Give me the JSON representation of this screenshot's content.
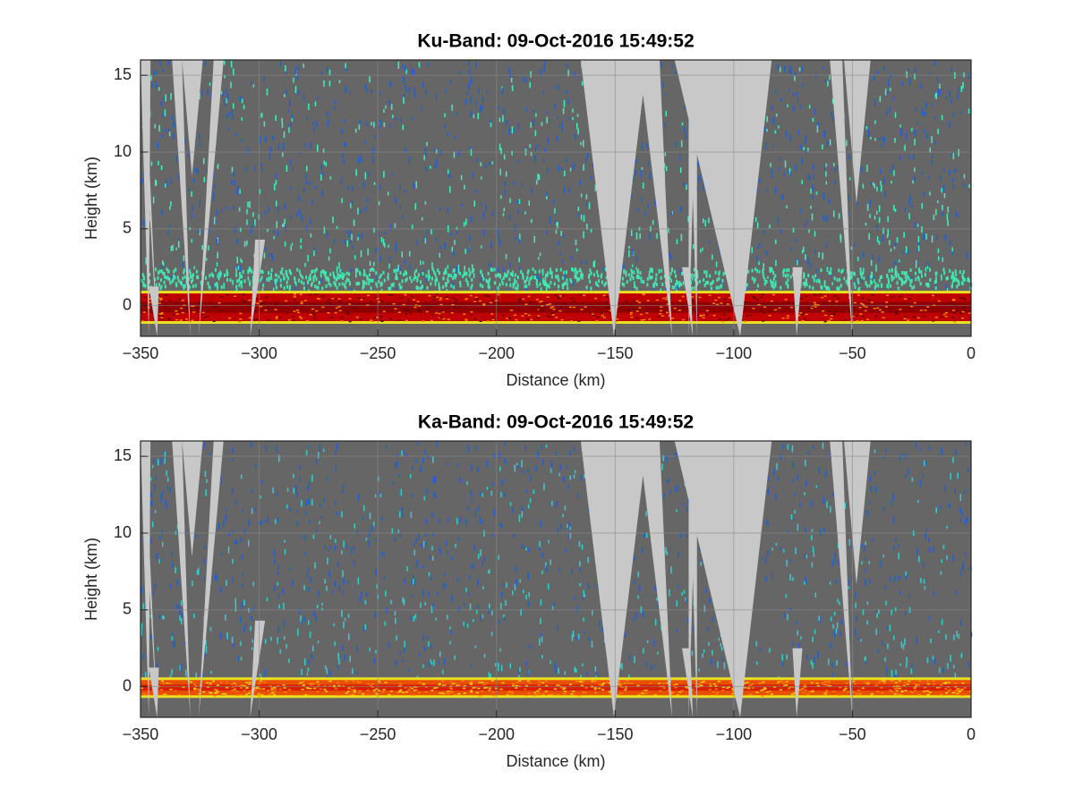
{
  "chart_data": [
    {
      "type": "heatmap",
      "title": "Ku-Band: 09-Oct-2016 15:49:52",
      "xlabel": "Distance (km)",
      "ylabel": "Height (km)",
      "xlim": [
        -350,
        0
      ],
      "ylim": [
        -2,
        16
      ],
      "xticks": [
        {
          "value": -350,
          "label": "−350"
        },
        {
          "value": -300,
          "label": "−300"
        },
        {
          "value": -250,
          "label": "−250"
        },
        {
          "value": -200,
          "label": "−200"
        },
        {
          "value": -150,
          "label": "−150"
        },
        {
          "value": -100,
          "label": "−100"
        },
        {
          "value": -50,
          "label": "−50"
        },
        0
      ],
      "yticks": [
        0,
        5,
        10,
        15
      ],
      "grid": true
    },
    {
      "type": "heatmap",
      "title": "Ka-Band: 09-Oct-2016 15:49:52",
      "xlabel": "Distance (km)",
      "ylabel": "Height (km)",
      "xlim": [
        -350,
        0
      ],
      "ylim": [
        -2,
        16
      ],
      "xticks": [
        {
          "value": -350,
          "label": "−350"
        },
        {
          "value": -300,
          "label": "−300"
        },
        {
          "value": -250,
          "label": "−250"
        },
        {
          "value": -200,
          "label": "−200"
        },
        {
          "value": -150,
          "label": "−150"
        },
        {
          "value": -100,
          "label": "−100"
        },
        {
          "value": -50,
          "label": "−50"
        },
        0
      ],
      "yticks": [
        0,
        5,
        10,
        15
      ],
      "grid": true
    }
  ]
}
